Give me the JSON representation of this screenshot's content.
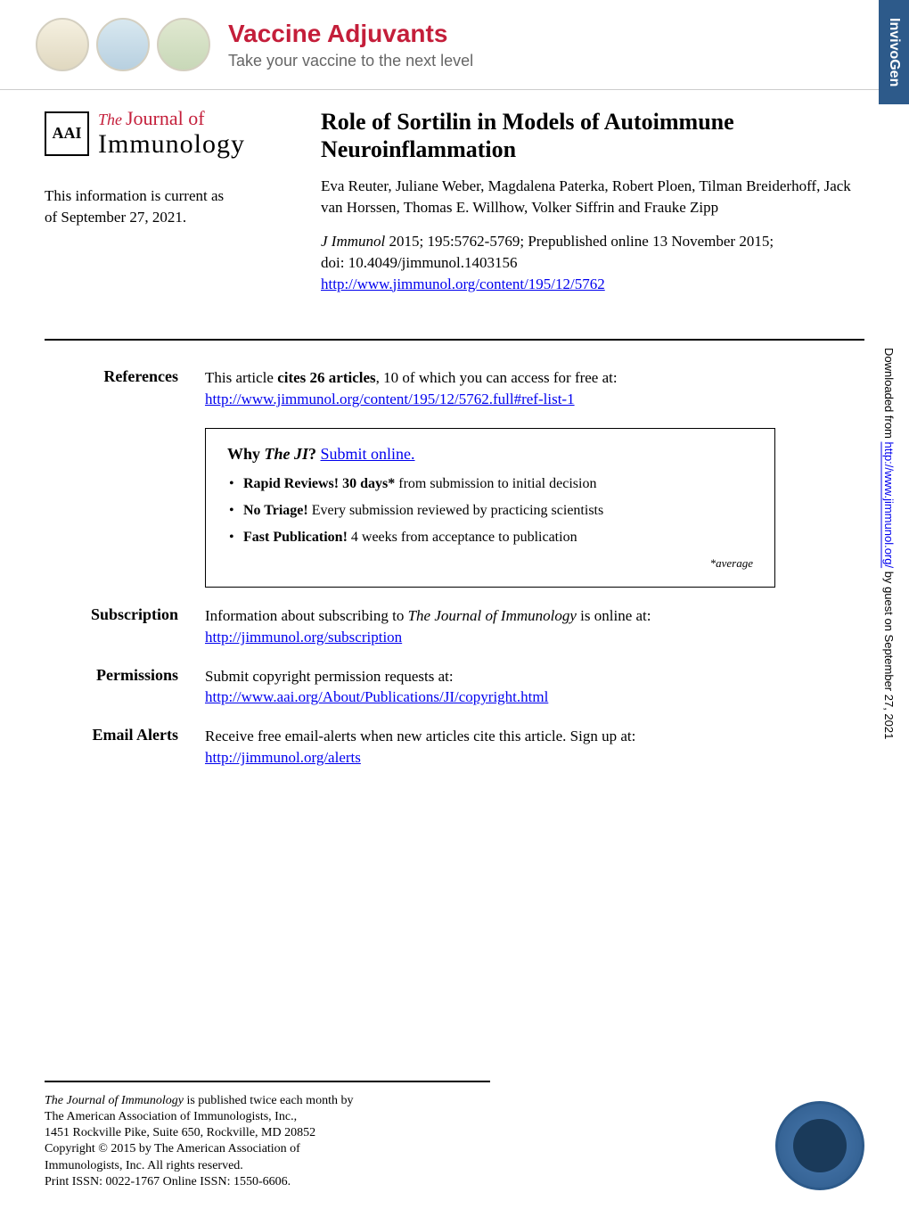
{
  "banner": {
    "title": "Vaccine Adjuvants",
    "subtitle": "Take your vaccine to the next level",
    "badge": "InvivoGen"
  },
  "journal": {
    "the": "The",
    "journal_of": "Journal of",
    "name": "Immunology",
    "badge": "AAI"
  },
  "current": {
    "line1": "This information is current as",
    "line2": "of September 27, 2021."
  },
  "article": {
    "title": "Role of Sortilin in Models of Autoimmune Neuroinflammation",
    "authors": "Eva Reuter, Juliane Weber, Magdalena Paterka, Robert Ploen, Tilman Breiderhoff, Jack van Horssen, Thomas E. Willhow, Volker Siffrin and Frauke Zipp",
    "journal_name": "J Immunol",
    "cite_text": " 2015; 195:5762-5769; Prepublished online 13 November 2015;",
    "doi": "doi: 10.4049/jimmunol.1403156",
    "url": "http://www.jimmunol.org/content/195/12/5762"
  },
  "references": {
    "label": "References",
    "text_part1": "This article ",
    "text_bold": "cites 26 articles",
    "text_part2": ", 10 of which you can access for free at:",
    "url": "http://www.jimmunol.org/content/195/12/5762.full#ref-list-1"
  },
  "why_box": {
    "why": "Why ",
    "the_ji": "The JI",
    "q": "? ",
    "submit": "Submit online.",
    "items": [
      {
        "bold": "Rapid Reviews! 30 days*",
        "rest": " from submission to initial decision"
      },
      {
        "bold": "No Triage!",
        "rest": " Every submission reviewed by practicing scientists"
      },
      {
        "bold": "Fast Publication!",
        "rest": " 4 weeks from acceptance to publication"
      }
    ],
    "average": "*average"
  },
  "subscription": {
    "label": "Subscription",
    "text_part1": "Information about subscribing to ",
    "text_italic": "The Journal of Immunology",
    "text_part2": " is online at:",
    "url": "http://jimmunol.org/subscription"
  },
  "permissions": {
    "label": "Permissions",
    "text": "Submit copyright permission requests at:",
    "url": "http://www.aai.org/About/Publications/JI/copyright.html"
  },
  "alerts": {
    "label": "Email Alerts",
    "text": "Receive free email-alerts when new articles cite this article. Sign up at:",
    "url": "http://jimmunol.org/alerts"
  },
  "footer": {
    "line1_it": "The Journal of Immunology ",
    "line1": "is published twice each month by",
    "line2": "The American Association of Immunologists, Inc.,",
    "line3": "1451 Rockville Pike, Suite 650, Rockville, MD 20852",
    "line4": "Copyright © 2015 by The American Association of",
    "line5": "Immunologists, Inc. All rights reserved.",
    "line6": "Print ISSN: 0022-1767 Online ISSN: 1550-6606."
  },
  "sidebar": {
    "text_part1": "Downloaded from ",
    "url": "http://www.jimmunol.org/",
    "text_part2": " by guest on September 27, 2021"
  },
  "colors": {
    "red": "#c41e3a",
    "blue_link": "#0000ee",
    "badge_blue": "#2d5a8a"
  }
}
